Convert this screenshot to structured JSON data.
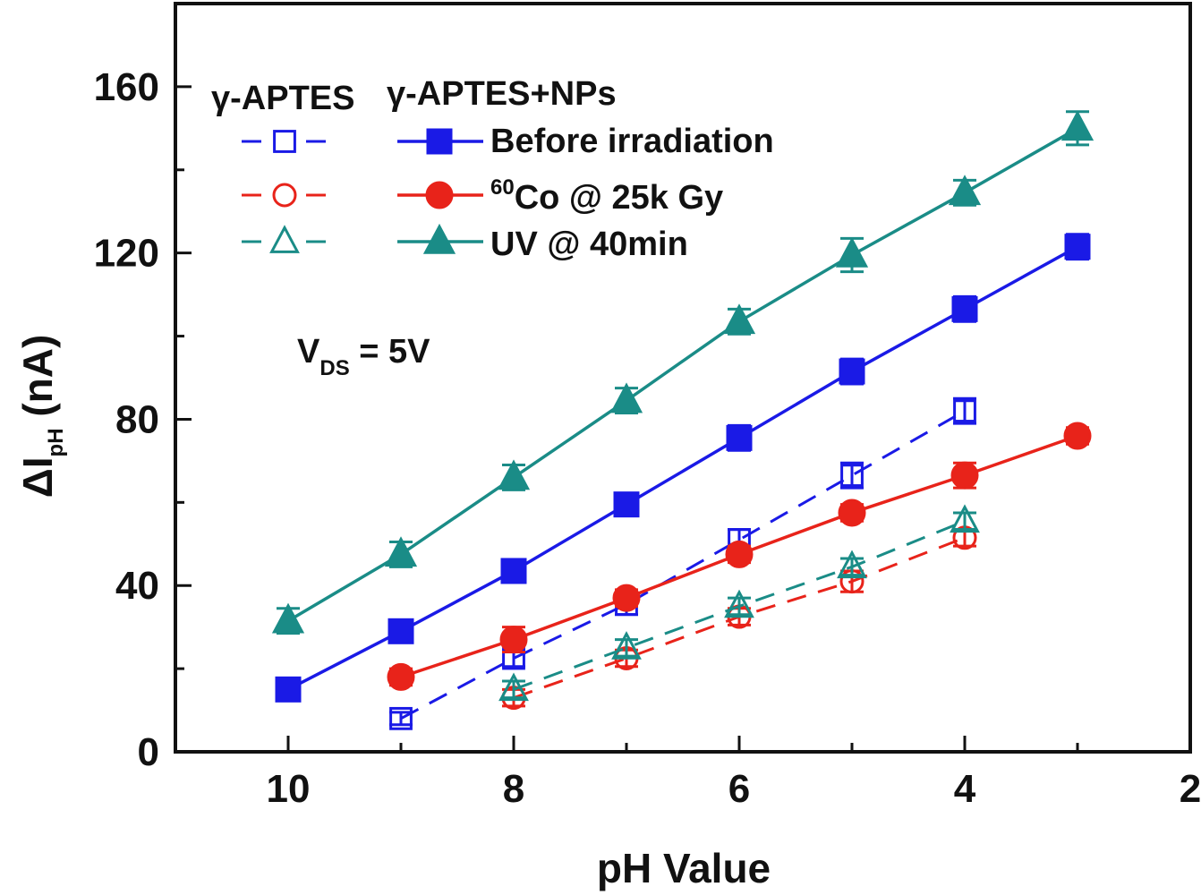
{
  "chart_data": {
    "type": "line",
    "xlabel": "pH Value",
    "ylabel_prefix": "ΔI",
    "ylabel_sub": "pH",
    "ylabel_suffix": " (nA)",
    "xlim": [
      11,
      2
    ],
    "ylim": [
      0,
      180
    ],
    "x_ticks": [
      10,
      8,
      6,
      4,
      2
    ],
    "y_ticks": [
      0,
      40,
      80,
      120,
      160
    ],
    "annotation": {
      "prefix": "V",
      "sub": "DS",
      "suffix": " = 5V"
    },
    "legend": {
      "group_left": "γ-APTES",
      "group_right": "γ-APTES+NPs",
      "entries": [
        {
          "label": "Before irradiation",
          "color": "#1a1ae6",
          "marker": "square"
        },
        {
          "label_sup": "60",
          "label": "Co @ 25k Gy",
          "color": "#e8231a",
          "marker": "circle"
        },
        {
          "label": "UV @ 40min",
          "color": "#1a8c87",
          "marker": "triangle"
        }
      ]
    },
    "series": [
      {
        "name": "Before irradiation",
        "group": "γ-APTES+NPs",
        "color": "#1a1ae6",
        "marker": "square",
        "filled": true,
        "dash": false,
        "x": [
          10,
          9,
          8,
          7,
          6,
          5,
          4,
          3
        ],
        "y": [
          15,
          29,
          43.5,
          59.5,
          75.5,
          91.5,
          106.5,
          121.5
        ],
        "err": [
          1.5,
          1.5,
          2.5,
          2,
          3,
          3,
          3,
          3
        ]
      },
      {
        "name": "60Co @ 25k Gy",
        "group": "γ-APTES+NPs",
        "color": "#e8231a",
        "marker": "circle",
        "filled": true,
        "dash": false,
        "x": [
          9,
          8,
          7,
          6,
          5,
          4,
          3
        ],
        "y": [
          18,
          27,
          37,
          47.5,
          57.5,
          66.5,
          76
        ],
        "err": [
          2,
          3,
          2,
          2,
          2,
          3,
          2
        ]
      },
      {
        "name": "UV @ 40min",
        "group": "γ-APTES+NPs",
        "color": "#1a8c87",
        "marker": "triangle",
        "filled": true,
        "dash": false,
        "x": [
          10,
          9,
          8,
          7,
          6,
          5,
          4,
          3
        ],
        "y": [
          31.5,
          47.5,
          66,
          84.5,
          103.5,
          119.5,
          134.5,
          150
        ],
        "err": [
          3,
          3,
          3,
          3,
          3,
          4,
          3,
          4
        ]
      },
      {
        "name": "Before irradiation",
        "group": "γ-APTES",
        "color": "#1a1ae6",
        "marker": "square",
        "filled": false,
        "dash": true,
        "x": [
          9,
          8,
          7,
          6,
          5,
          4
        ],
        "y": [
          8,
          22.5,
          35.5,
          51,
          66.5,
          82
        ],
        "err": [
          1.5,
          2,
          2.5,
          2.5,
          3,
          3
        ]
      },
      {
        "name": "60Co @ 25k Gy",
        "group": "γ-APTES",
        "color": "#e8231a",
        "marker": "circle",
        "filled": false,
        "dash": true,
        "x": [
          8,
          7,
          6,
          5,
          4
        ],
        "y": [
          13,
          22.5,
          32.5,
          41,
          51.5
        ],
        "err": [
          2,
          2,
          2,
          2.5,
          2
        ]
      },
      {
        "name": "UV @ 40min",
        "group": "γ-APTES",
        "color": "#1a8c87",
        "marker": "triangle",
        "filled": false,
        "dash": true,
        "x": [
          8,
          7,
          6,
          5,
          4
        ],
        "y": [
          15,
          25,
          35,
          44.5,
          55.5
        ],
        "err": [
          2,
          2,
          2,
          2,
          2
        ]
      }
    ]
  }
}
